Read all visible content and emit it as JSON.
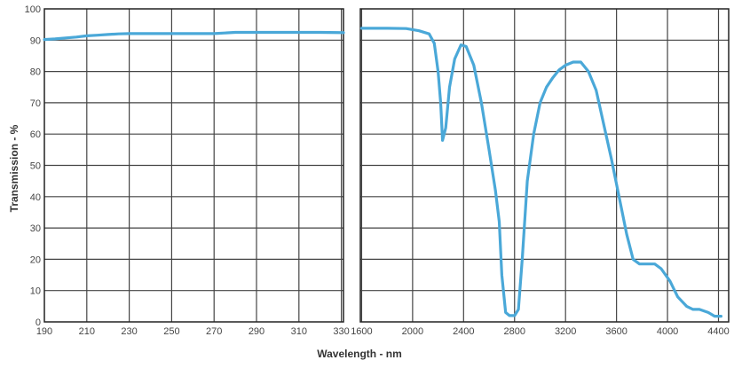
{
  "colors": {
    "series": "#4aa8d8",
    "grid": "#444444",
    "frame": "#222222",
    "background": "#ffffff"
  },
  "chart_data": [
    {
      "type": "line",
      "title": "",
      "xlabel": "",
      "ylabel": "Transmission - %",
      "xlim": [
        190,
        331
      ],
      "ylim": [
        0,
        100
      ],
      "xticks": [
        190,
        210,
        230,
        250,
        270,
        290,
        310,
        330
      ],
      "yticks": [
        0,
        10,
        20,
        30,
        40,
        50,
        60,
        70,
        80,
        90,
        100
      ],
      "grid": true,
      "series": [
        {
          "values": [
            [
              190,
              90.2
            ],
            [
              195,
              90.4
            ],
            [
              200,
              90.7
            ],
            [
              205,
              91.0
            ],
            [
              210,
              91.4
            ],
            [
              215,
              91.6
            ],
            [
              220,
              91.8
            ],
            [
              225,
              92.0
            ],
            [
              230,
              92.1
            ],
            [
              240,
              92.1
            ],
            [
              250,
              92.1
            ],
            [
              260,
              92.1
            ],
            [
              270,
              92.1
            ],
            [
              275,
              92.3
            ],
            [
              280,
              92.5
            ],
            [
              290,
              92.5
            ],
            [
              300,
              92.5
            ],
            [
              310,
              92.5
            ],
            [
              320,
              92.5
            ],
            [
              331,
              92.4
            ]
          ]
        }
      ]
    },
    {
      "type": "line",
      "title": "",
      "xlabel": "Wavelength - nm",
      "ylabel": "",
      "xlim": [
        1590,
        4480
      ],
      "ylim": [
        0,
        100
      ],
      "xticks": [
        1600,
        2000,
        2400,
        2800,
        3200,
        3600,
        4000,
        4400
      ],
      "yticks": [
        0,
        10,
        20,
        30,
        40,
        50,
        60,
        70,
        80,
        90,
        100
      ],
      "grid": true,
      "series": [
        {
          "values": [
            [
              1600,
              93.8
            ],
            [
              1800,
              93.8
            ],
            [
              1950,
              93.7
            ],
            [
              2050,
              93.0
            ],
            [
              2130,
              92.0
            ],
            [
              2170,
              89.0
            ],
            [
              2200,
              80.0
            ],
            [
              2220,
              70.0
            ],
            [
              2235,
              58.0
            ],
            [
              2260,
              62.0
            ],
            [
              2290,
              75.0
            ],
            [
              2330,
              84.0
            ],
            [
              2380,
              88.5
            ],
            [
              2420,
              88.0
            ],
            [
              2480,
              82.0
            ],
            [
              2540,
              70.0
            ],
            [
              2600,
              55.0
            ],
            [
              2650,
              42.0
            ],
            [
              2680,
              32.0
            ],
            [
              2700,
              15.0
            ],
            [
              2730,
              3.0
            ],
            [
              2760,
              2.0
            ],
            [
              2800,
              2.0
            ],
            [
              2830,
              4.0
            ],
            [
              2860,
              20.0
            ],
            [
              2900,
              45.0
            ],
            [
              2950,
              60.0
            ],
            [
              3000,
              70.0
            ],
            [
              3050,
              75.0
            ],
            [
              3100,
              78.0
            ],
            [
              3150,
              80.5
            ],
            [
              3200,
              82.0
            ],
            [
              3260,
              83.0
            ],
            [
              3320,
              83.0
            ],
            [
              3380,
              80.0
            ],
            [
              3440,
              74.0
            ],
            [
              3500,
              63.0
            ],
            [
              3560,
              52.0
            ],
            [
              3620,
              40.0
            ],
            [
              3680,
              28.0
            ],
            [
              3730,
              20.0
            ],
            [
              3780,
              18.5
            ],
            [
              3900,
              18.5
            ],
            [
              3950,
              17.0
            ],
            [
              4020,
              13.0
            ],
            [
              4080,
              8.0
            ],
            [
              4150,
              5.0
            ],
            [
              4200,
              4.0
            ],
            [
              4250,
              4.0
            ],
            [
              4320,
              3.0
            ],
            [
              4370,
              1.8
            ],
            [
              4420,
              1.8
            ]
          ]
        }
      ]
    }
  ]
}
